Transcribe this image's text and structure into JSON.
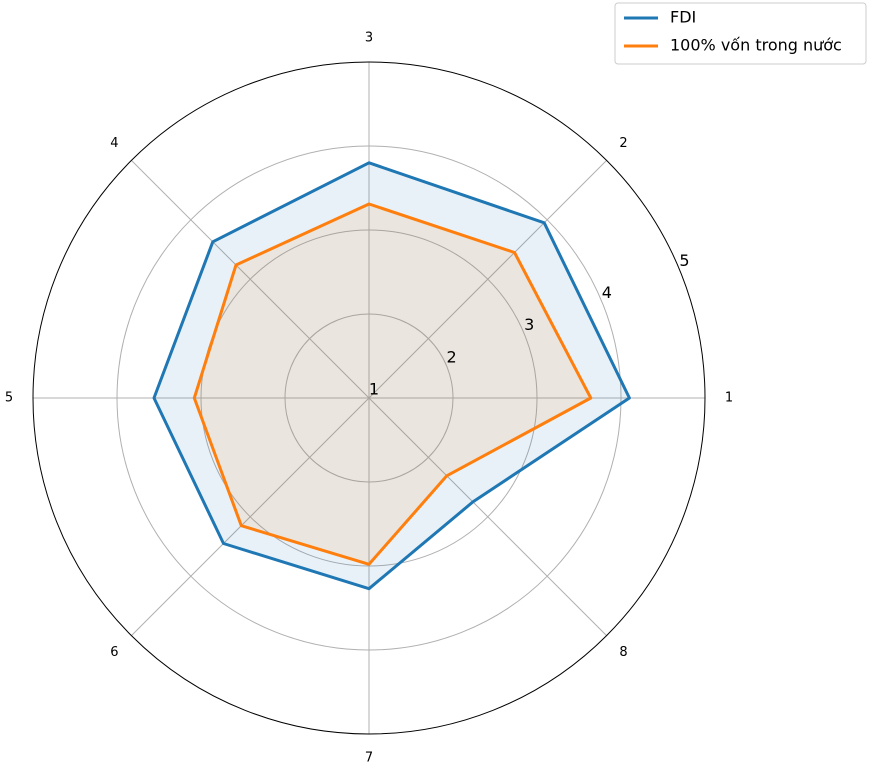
{
  "chart_data": {
    "type": "radar",
    "categories": [
      "1",
      "2",
      "3",
      "4",
      "5",
      "6",
      "7",
      "8"
    ],
    "series": [
      {
        "name": "FDI",
        "color": "#1f77b4",
        "values": [
          4.1,
          3.95,
          3.8,
          3.63,
          3.56,
          3.45,
          3.27,
          2.75
        ]
      },
      {
        "name": "100% vốn trong nước",
        "color": "#ff7f0e",
        "values": [
          3.64,
          3.45,
          3.31,
          3.24,
          3.08,
          3.15,
          2.98,
          2.31
        ]
      }
    ],
    "rlim": [
      1,
      5
    ],
    "rticks": [
      1,
      2,
      3,
      4,
      5
    ],
    "grid": true,
    "legend": "upper right"
  }
}
